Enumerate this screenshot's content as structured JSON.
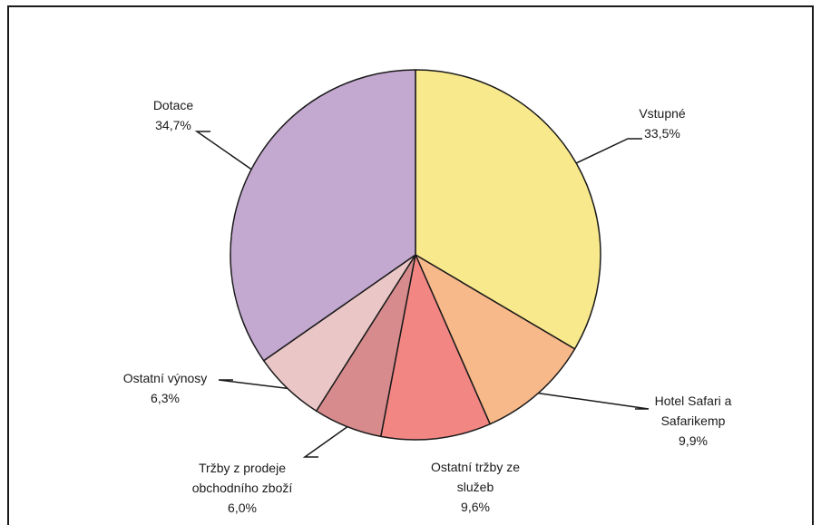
{
  "chart_data": {
    "type": "pie",
    "start_angle_deg": 0,
    "direction": "clockwise",
    "slices": [
      {
        "label_lines": [
          "Vstupné"
        ],
        "value_label": "33,5%",
        "value": 33.5,
        "color": "#f8e98c"
      },
      {
        "label_lines": [
          "Hotel Safari a",
          "Safarikemp"
        ],
        "value_label": "9,9%",
        "value": 9.9,
        "color": "#f7b88a"
      },
      {
        "label_lines": [
          "Ostatní tržby ze",
          "služeb"
        ],
        "value_label": "9,6%",
        "value": 9.6,
        "color": "#f28683"
      },
      {
        "label_lines": [
          "Tržby z prodeje",
          "obchodního zboží"
        ],
        "value_label": "6,0%",
        "value": 6.0,
        "color": "#d78b8d"
      },
      {
        "label_lines": [
          "Ostatní výnosy"
        ],
        "value_label": "6,3%",
        "value": 6.3,
        "color": "#ebc6c6"
      },
      {
        "label_lines": [
          "Dotace"
        ],
        "value_label": "34,7%",
        "value": 34.7,
        "color": "#c3a8d0"
      }
    ]
  }
}
